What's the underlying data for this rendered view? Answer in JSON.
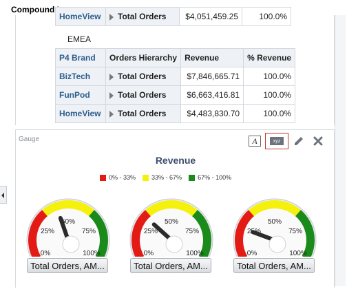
{
  "title": "Compound Layout",
  "pivot_top": {
    "brand": "HomeView",
    "hierarchy": "Total Orders",
    "revenue": "$4,051,459.25",
    "pct": "100.0%"
  },
  "region": "EMEA",
  "pivot": {
    "headers": [
      "P4 Brand",
      "Orders Hierarchy",
      "Revenue",
      "% Revenue"
    ],
    "rows": [
      {
        "brand": "BizTech",
        "hierarchy": "Total Orders",
        "revenue": "$7,846,665.71",
        "pct": "100.0%"
      },
      {
        "brand": "FunPod",
        "hierarchy": "Total Orders",
        "revenue": "$6,663,416.81",
        "pct": "100.0%"
      },
      {
        "brand": "HomeView",
        "hierarchy": "Total Orders",
        "revenue": "$4,483,830.70",
        "pct": "100.0%"
      }
    ]
  },
  "gauge_section": {
    "label": "Gauge",
    "title": "Revenue",
    "toolbar": {
      "format_icon": "text-format-icon",
      "xyz_icon": "xyz-icon",
      "edit_icon": "pencil-icon",
      "close_icon": "close-icon",
      "xyz_text": "xyz",
      "format_text": "A"
    },
    "legend": [
      {
        "label": "0% - 33%",
        "color": "#e31b14"
      },
      {
        "label": "33% - 67%",
        "color": "#f5f10d"
      },
      {
        "label": "67% - 100%",
        "color": "#1a8a1a"
      }
    ],
    "ticks": [
      "0%",
      "25%",
      "50%",
      "75%",
      "100%"
    ],
    "gauges": [
      {
        "value_pct": 42,
        "button": "Total Orders, AM..."
      },
      {
        "value_pct": 30,
        "button": "Total Orders, AM..."
      },
      {
        "value_pct": 21,
        "button": "Total Orders, AM..."
      }
    ]
  }
}
